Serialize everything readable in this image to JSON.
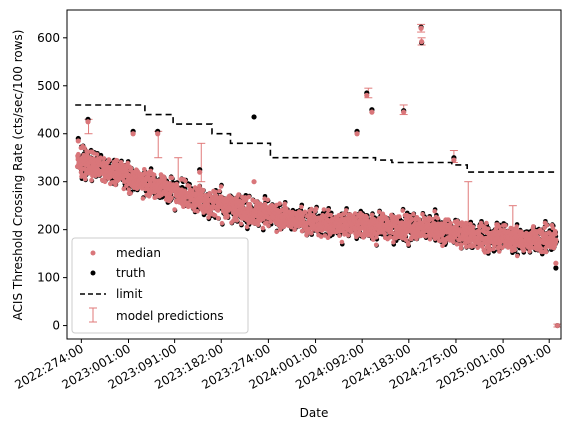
{
  "chart_data": {
    "type": "scatter",
    "xlabel": "Date",
    "ylabel": "ACIS Threshold Crossing Rate (cts/sec/100 rows)",
    "x_unit": "year:doy",
    "xlim": [
      "2022:246",
      "2025:114"
    ],
    "ylim": [
      -28,
      658
    ],
    "grid": false,
    "legend_position": "lower-left",
    "x_ticks": [
      "2022:274:00",
      "2023:001:00",
      "2023:091:00",
      "2023:182:00",
      "2023:274:00",
      "2024:001:00",
      "2024:092:00",
      "2024:183:00",
      "2024:275:00",
      "2025:001:00",
      "2025:091:00"
    ],
    "y_ticks": [
      0,
      100,
      200,
      300,
      400,
      500,
      600
    ],
    "colors": {
      "median": "#d9767a",
      "truth": "#000000",
      "limit": "#000000",
      "model_predictions": "#e07a7a"
    },
    "series": [
      {
        "name": "median",
        "marker": "dot",
        "color": "#d9767a"
      },
      {
        "name": "truth",
        "marker": "dot",
        "color": "#000000"
      },
      {
        "name": "limit",
        "marker": "dashed-line",
        "color": "#000000"
      },
      {
        "name": "model predictions",
        "marker": "errorbar",
        "color": "#e07a7a"
      }
    ],
    "limit_steps": [
      {
        "start": "2022:262",
        "end": "2023:033",
        "value": 460
      },
      {
        "start": "2023:033",
        "end": "2023:088",
        "value": 440
      },
      {
        "start": "2023:088",
        "end": "2023:164",
        "value": 420
      },
      {
        "start": "2023:164",
        "end": "2023:200",
        "value": 400
      },
      {
        "start": "2023:200",
        "end": "2023:278",
        "value": 380
      },
      {
        "start": "2023:278",
        "end": "2024:118",
        "value": 350
      },
      {
        "start": "2024:118",
        "end": "2024:150",
        "value": 345
      },
      {
        "start": "2024:150",
        "end": "2024:267",
        "value": 340
      },
      {
        "start": "2024:267",
        "end": "2024:297",
        "value": 335
      },
      {
        "start": "2024:297",
        "end": "2025:107",
        "value": 320
      }
    ],
    "trend": [
      {
        "date": "2022:266",
        "median": 340
      },
      {
        "date": "2022:335",
        "median": 322
      },
      {
        "date": "2023:040",
        "median": 298
      },
      {
        "date": "2023:110",
        "median": 270
      },
      {
        "date": "2023:182",
        "median": 252
      },
      {
        "date": "2023:250",
        "median": 235
      },
      {
        "date": "2023:320",
        "median": 222
      },
      {
        "date": "2024:030",
        "median": 212
      },
      {
        "date": "2024:120",
        "median": 208
      },
      {
        "date": "2024:200",
        "median": 205
      },
      {
        "date": "2024:275",
        "median": 195
      },
      {
        "date": "2024:340",
        "median": 183
      },
      {
        "date": "2025:040",
        "median": 178
      },
      {
        "date": "2025:105",
        "median": 180
      }
    ],
    "highlighted_points": [
      {
        "date": "2022:268",
        "truth": 390,
        "median": 385
      },
      {
        "date": "2022:287",
        "truth": 430,
        "median": 425
      },
      {
        "date": "2023:010",
        "truth": 405,
        "median": 400
      },
      {
        "date": "2023:058",
        "truth": 405,
        "median": 400
      },
      {
        "date": "2023:140",
        "truth": 325,
        "median": 320
      },
      {
        "date": "2023:246",
        "truth": 435,
        "median": 300
      },
      {
        "date": "2024:082",
        "truth": 405,
        "median": 400
      },
      {
        "date": "2024:101",
        "truth": 485,
        "median": 480
      },
      {
        "date": "2024:111",
        "truth": 450,
        "median": 445
      },
      {
        "date": "2024:173",
        "truth": 448,
        "median": 445
      },
      {
        "date": "2024:207",
        "truth": 622,
        "median": 620
      },
      {
        "date": "2024:208",
        "truth": 590,
        "median": 592
      },
      {
        "date": "2024:271",
        "truth": 350,
        "median": 345
      },
      {
        "date": "2025:104",
        "truth": 120,
        "median": 130
      },
      {
        "date": "2025:107",
        "truth": 0,
        "median": 0
      }
    ],
    "error_bars": [
      {
        "date": "2022:288",
        "low": 400,
        "high": 430
      },
      {
        "date": "2023:059",
        "low": 350,
        "high": 405
      },
      {
        "date": "2023:098",
        "low": 300,
        "high": 350
      },
      {
        "date": "2023:143",
        "low": 300,
        "high": 380
      },
      {
        "date": "2024:104",
        "low": 475,
        "high": 495
      },
      {
        "date": "2024:173",
        "low": 440,
        "high": 460
      },
      {
        "date": "2024:207",
        "low": 612,
        "high": 628
      },
      {
        "date": "2024:208",
        "low": 585,
        "high": 600
      },
      {
        "date": "2024:271",
        "low": 340,
        "high": 365
      },
      {
        "date": "2024:299",
        "low": 175,
        "high": 300
      },
      {
        "date": "2025:020",
        "low": 180,
        "high": 250
      },
      {
        "date": "2025:107",
        "low": -3,
        "high": 3
      }
    ]
  },
  "legend": {
    "median": "median",
    "truth": "truth",
    "limit": "limit",
    "model_predictions": "model predictions"
  }
}
